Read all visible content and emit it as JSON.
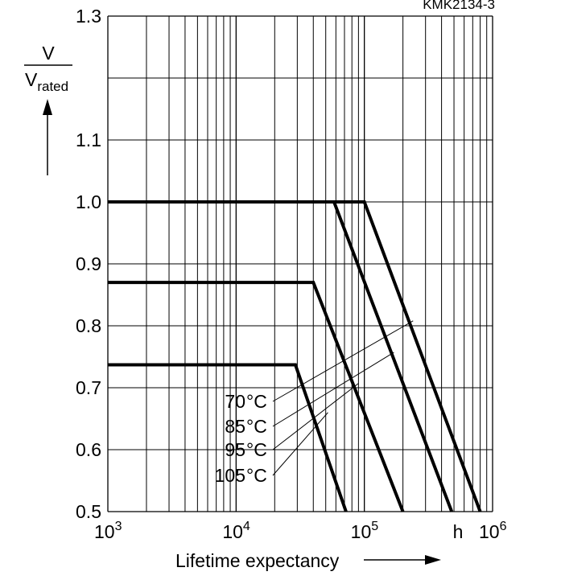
{
  "chart_data": {
    "type": "line",
    "figure_code": "KMK2134-3",
    "x_scale": "log",
    "xlim": [
      1000,
      1000000
    ],
    "x_ticks": [
      {
        "base": "10",
        "exp": "3"
      },
      {
        "base": "10",
        "exp": "4"
      },
      {
        "base": "10",
        "exp": "5"
      },
      {
        "base": "10",
        "exp": "6"
      }
    ],
    "x_unit": "h",
    "xlabel": "Lifetime expectancy",
    "ylabel": {
      "numerator": "V",
      "denominator_main": "V",
      "denominator_sub": "rated"
    },
    "ylim": [
      0.5,
      1.3
    ],
    "y_ticks": [
      "0.5",
      "0.6",
      "0.7",
      "0.8",
      "0.9",
      "1.0",
      "1.1",
      "1.3"
    ],
    "grid": true,
    "series": [
      {
        "name": "70 °C",
        "label": "70",
        "unit": "°C",
        "x": [
          1000,
          100000,
          800000
        ],
        "y": [
          1.0,
          1.0,
          0.5
        ]
      },
      {
        "name": "85 °C",
        "label": "85",
        "unit": "°C",
        "x": [
          1000,
          58000,
          480000
        ],
        "y": [
          1.0,
          1.0,
          0.5
        ]
      },
      {
        "name": "95 °C",
        "label": "95",
        "unit": "°C",
        "x": [
          1000,
          40000,
          200000
        ],
        "y": [
          0.87,
          0.87,
          0.5
        ]
      },
      {
        "name": "105 °C",
        "label": "105",
        "unit": "°C",
        "x": [
          1000,
          29000,
          72000
        ],
        "y": [
          0.737,
          0.737,
          0.5
        ]
      }
    ],
    "leader_targets": [
      {
        "x": 240000,
        "y": 0.808
      },
      {
        "x": 170000,
        "y": 0.757
      },
      {
        "x": 90000,
        "y": 0.707
      },
      {
        "x": 52000,
        "y": 0.66
      }
    ]
  }
}
